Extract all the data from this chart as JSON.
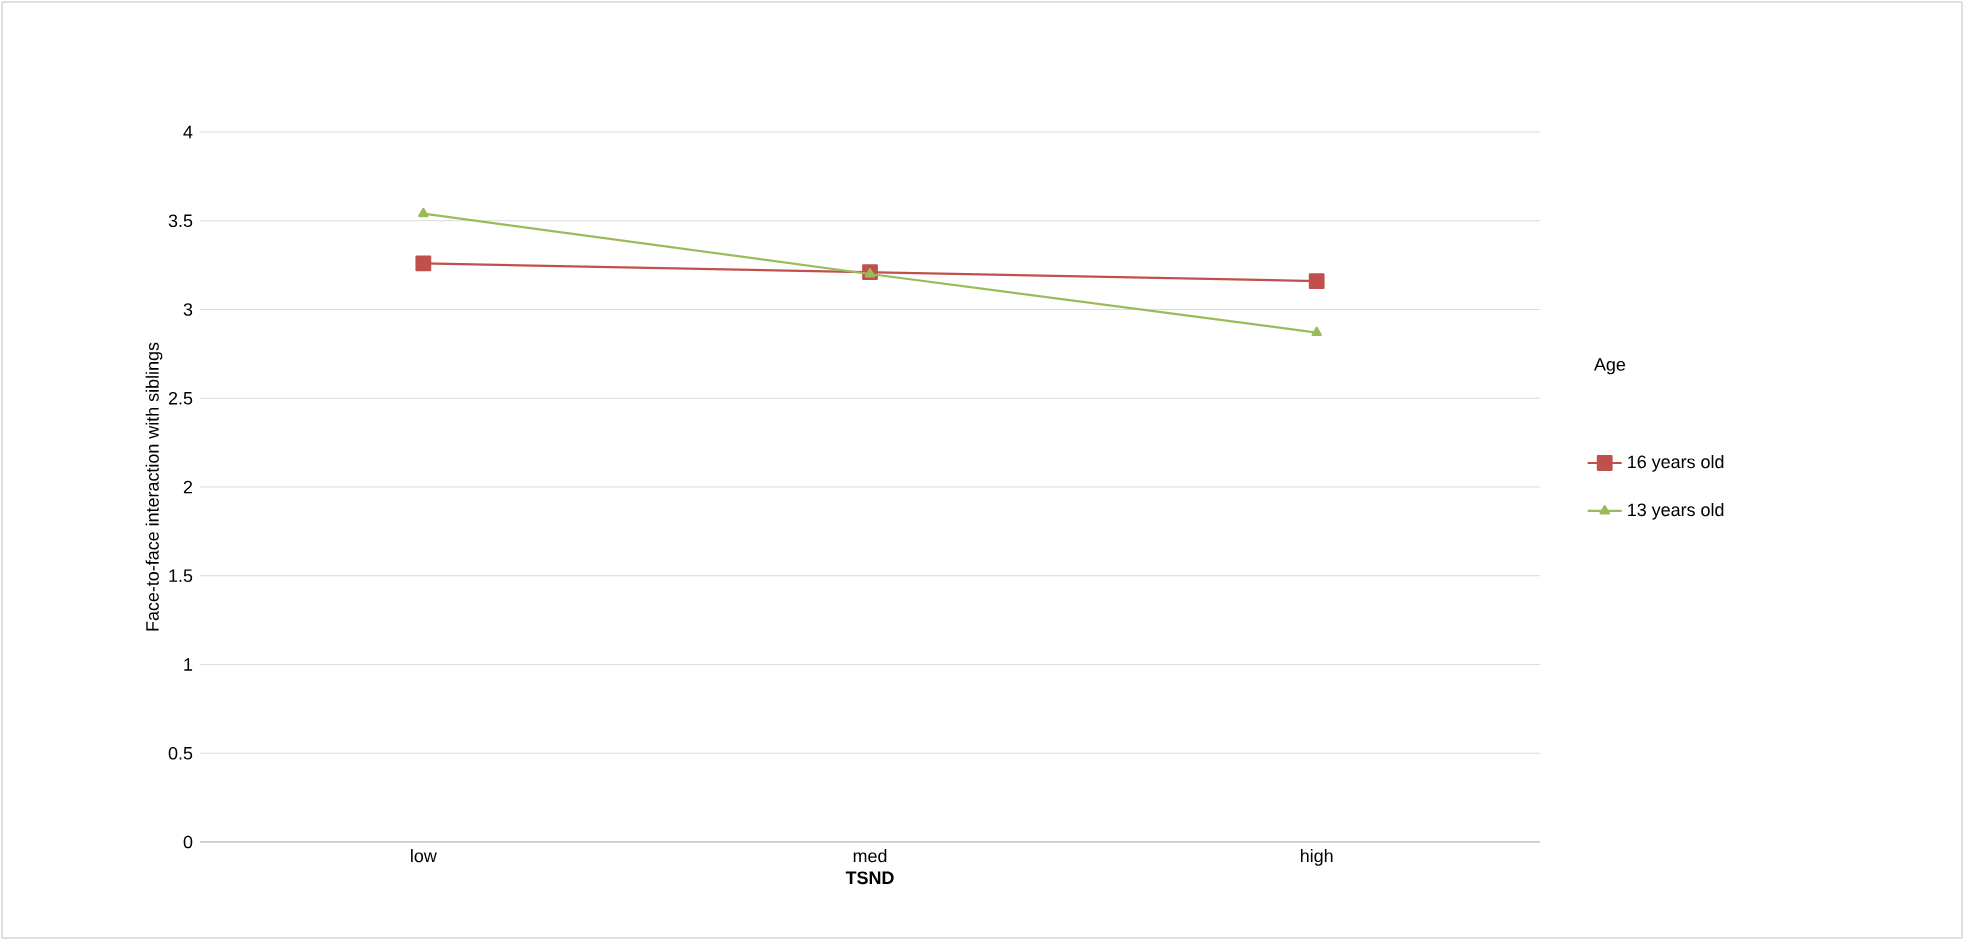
{
  "chart_data": {
    "type": "line",
    "xlabel": "TSND",
    "ylabel": "Face-to-face interaction with siblings",
    "legend_title": "Age",
    "categories": [
      "low",
      "med",
      "high"
    ],
    "series": [
      {
        "name": "16 years old",
        "color": "#c0504d",
        "marker": "square",
        "values": [
          3.26,
          3.21,
          3.16
        ]
      },
      {
        "name": "13 years old",
        "color": "#9bbb59",
        "marker": "triangle",
        "values": [
          3.54,
          3.2,
          2.87
        ]
      }
    ],
    "ylim": [
      0,
      4
    ],
    "yticks": [
      0,
      0.5,
      1,
      1.5,
      2,
      2.5,
      3,
      3.5,
      4
    ],
    "grid": "y",
    "legend": "right"
  }
}
